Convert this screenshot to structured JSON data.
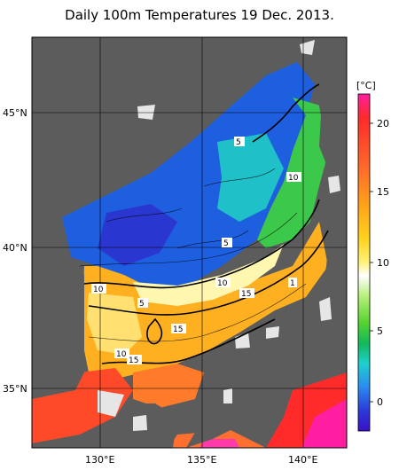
{
  "title": "Daily 100m Temperatures 19 Dec. 2013.",
  "colorbar": {
    "unit_label": "[°C]",
    "ticks": [
      "20",
      "15",
      "10",
      "5",
      "0"
    ],
    "colors": [
      "#ff1fa0",
      "#ff2a2a",
      "#ff6a2a",
      "#ffa21a",
      "#ffd21e",
      "#fff27a",
      "#ffffff",
      "#b6f07a",
      "#54d22e",
      "#12b85a",
      "#1ecfcf",
      "#2a8af0",
      "#2a3ad8",
      "#3a10c8"
    ]
  },
  "axes": {
    "lat_labels": [
      "45°N",
      "40°N",
      "35°N"
    ],
    "lon_labels": [
      "130°E",
      "135°E",
      "140°E"
    ]
  },
  "contour_labels": [
    "5",
    "10",
    "5",
    "10",
    "5",
    "10",
    "15",
    "1",
    "15",
    "10",
    "15"
  ],
  "colors": {
    "land": "#5c5c5c",
    "coast_white": "#e6e6e6",
    "sea_frame": "#ffffff"
  }
}
